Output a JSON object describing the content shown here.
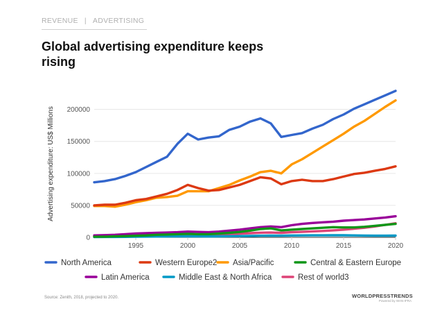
{
  "header": {
    "breadcrumb_section": "REVENUE",
    "breadcrumb_separator": "|",
    "breadcrumb_topic": "ADVERTISING",
    "title": "Global advertising expenditure keeps rising"
  },
  "footer": {
    "source": "Source: Zenith, 2018, projected to 2020.",
    "brand_name": "WORLDPRESSTRENDS",
    "brand_sub": "Powered by WAN-IFRA"
  },
  "chart_data": {
    "type": "line",
    "title": "",
    "xlabel": "",
    "ylabel": "Advertising expenditure: US$ Millions",
    "xlim": [
      1991,
      2020
    ],
    "ylim": [
      0,
      230000
    ],
    "grid": true,
    "legend_position": "bottom",
    "x_ticks": [
      1995,
      2000,
      2005,
      2010,
      2015,
      2020
    ],
    "y_ticks": [
      0,
      50000,
      100000,
      150000,
      200000
    ],
    "x_tick_labels": [
      "1995",
      "2000",
      "2005",
      "2010",
      "2015",
      "2020"
    ],
    "y_tick_labels": [
      "0",
      "50000",
      "100000",
      "150000",
      "200000"
    ],
    "x": [
      1991,
      1992,
      1993,
      1994,
      1995,
      1996,
      1997,
      1998,
      1999,
      2000,
      2001,
      2002,
      2003,
      2004,
      2005,
      2006,
      2007,
      2008,
      2009,
      2010,
      2011,
      2012,
      2013,
      2014,
      2015,
      2016,
      2017,
      2018,
      2019,
      2020
    ],
    "series": [
      {
        "name": "North America",
        "color": "#3366cc",
        "values": [
          86000,
          88000,
          91000,
          96000,
          102000,
          110000,
          118000,
          126000,
          146000,
          162000,
          153000,
          156000,
          158000,
          168000,
          173000,
          181000,
          186000,
          178000,
          157000,
          160000,
          163000,
          170000,
          176000,
          185000,
          192000,
          201000,
          208000,
          215000,
          222000,
          229000
        ]
      },
      {
        "name": "Western Europe2",
        "color": "#dc3912",
        "values": [
          50000,
          51000,
          51000,
          54000,
          58000,
          60000,
          64000,
          68000,
          74000,
          82000,
          77000,
          73000,
          74000,
          78000,
          82000,
          88000,
          94000,
          92000,
          83000,
          88000,
          90000,
          88000,
          88000,
          91000,
          95000,
          99000,
          101000,
          104000,
          107000,
          111000
        ]
      },
      {
        "name": "Asia/Pacific",
        "color": "#ff9900",
        "values": [
          49000,
          49000,
          48000,
          51000,
          55000,
          58000,
          62000,
          63000,
          65000,
          72000,
          72000,
          72000,
          77000,
          82000,
          89000,
          95000,
          102000,
          104000,
          100000,
          114000,
          122000,
          132000,
          142000,
          152000,
          162000,
          173000,
          182000,
          193000,
          204000,
          214000
        ]
      },
      {
        "name": "Central & Eastern Europe",
        "color": "#109618",
        "values": [
          1000,
          1000,
          1500,
          2000,
          2500,
          3000,
          4000,
          4500,
          5000,
          5500,
          5000,
          5000,
          6000,
          7000,
          8500,
          10500,
          13000,
          14000,
          11000,
          12000,
          13000,
          14000,
          15000,
          16000,
          15500,
          15500,
          16500,
          18000,
          19500,
          21000
        ]
      },
      {
        "name": "Latin America",
        "color": "#990099",
        "values": [
          3000,
          3500,
          4000,
          5000,
          6000,
          6500,
          7000,
          7500,
          8000,
          9000,
          8500,
          8000,
          9000,
          10500,
          12000,
          14000,
          16000,
          17000,
          16000,
          19000,
          21000,
          22500,
          23500,
          24500,
          26000,
          27000,
          28000,
          29500,
          31000,
          33000
        ]
      },
      {
        "name": "Middle East & North Africa",
        "color": "#0099c6",
        "values": [
          500,
          600,
          700,
          800,
          1000,
          1200,
          1300,
          1400,
          1500,
          1600,
          1500,
          1400,
          1600,
          1800,
          2000,
          2300,
          2600,
          2800,
          2600,
          2900,
          3000,
          3100,
          3200,
          3300,
          3300,
          3000,
          2800,
          2600,
          2600,
          2700
        ]
      },
      {
        "name": "Rest of world3",
        "color": "#dd4477",
        "values": [
          2000,
          2200,
          2400,
          2600,
          2900,
          3200,
          3500,
          3800,
          4100,
          4500,
          4500,
          4400,
          4700,
          5200,
          5800,
          6500,
          7300,
          7500,
          7000,
          8000,
          8600,
          9300,
          10000,
          11000,
          12000,
          13500,
          15000,
          17000,
          19500,
          22000
        ]
      }
    ]
  }
}
